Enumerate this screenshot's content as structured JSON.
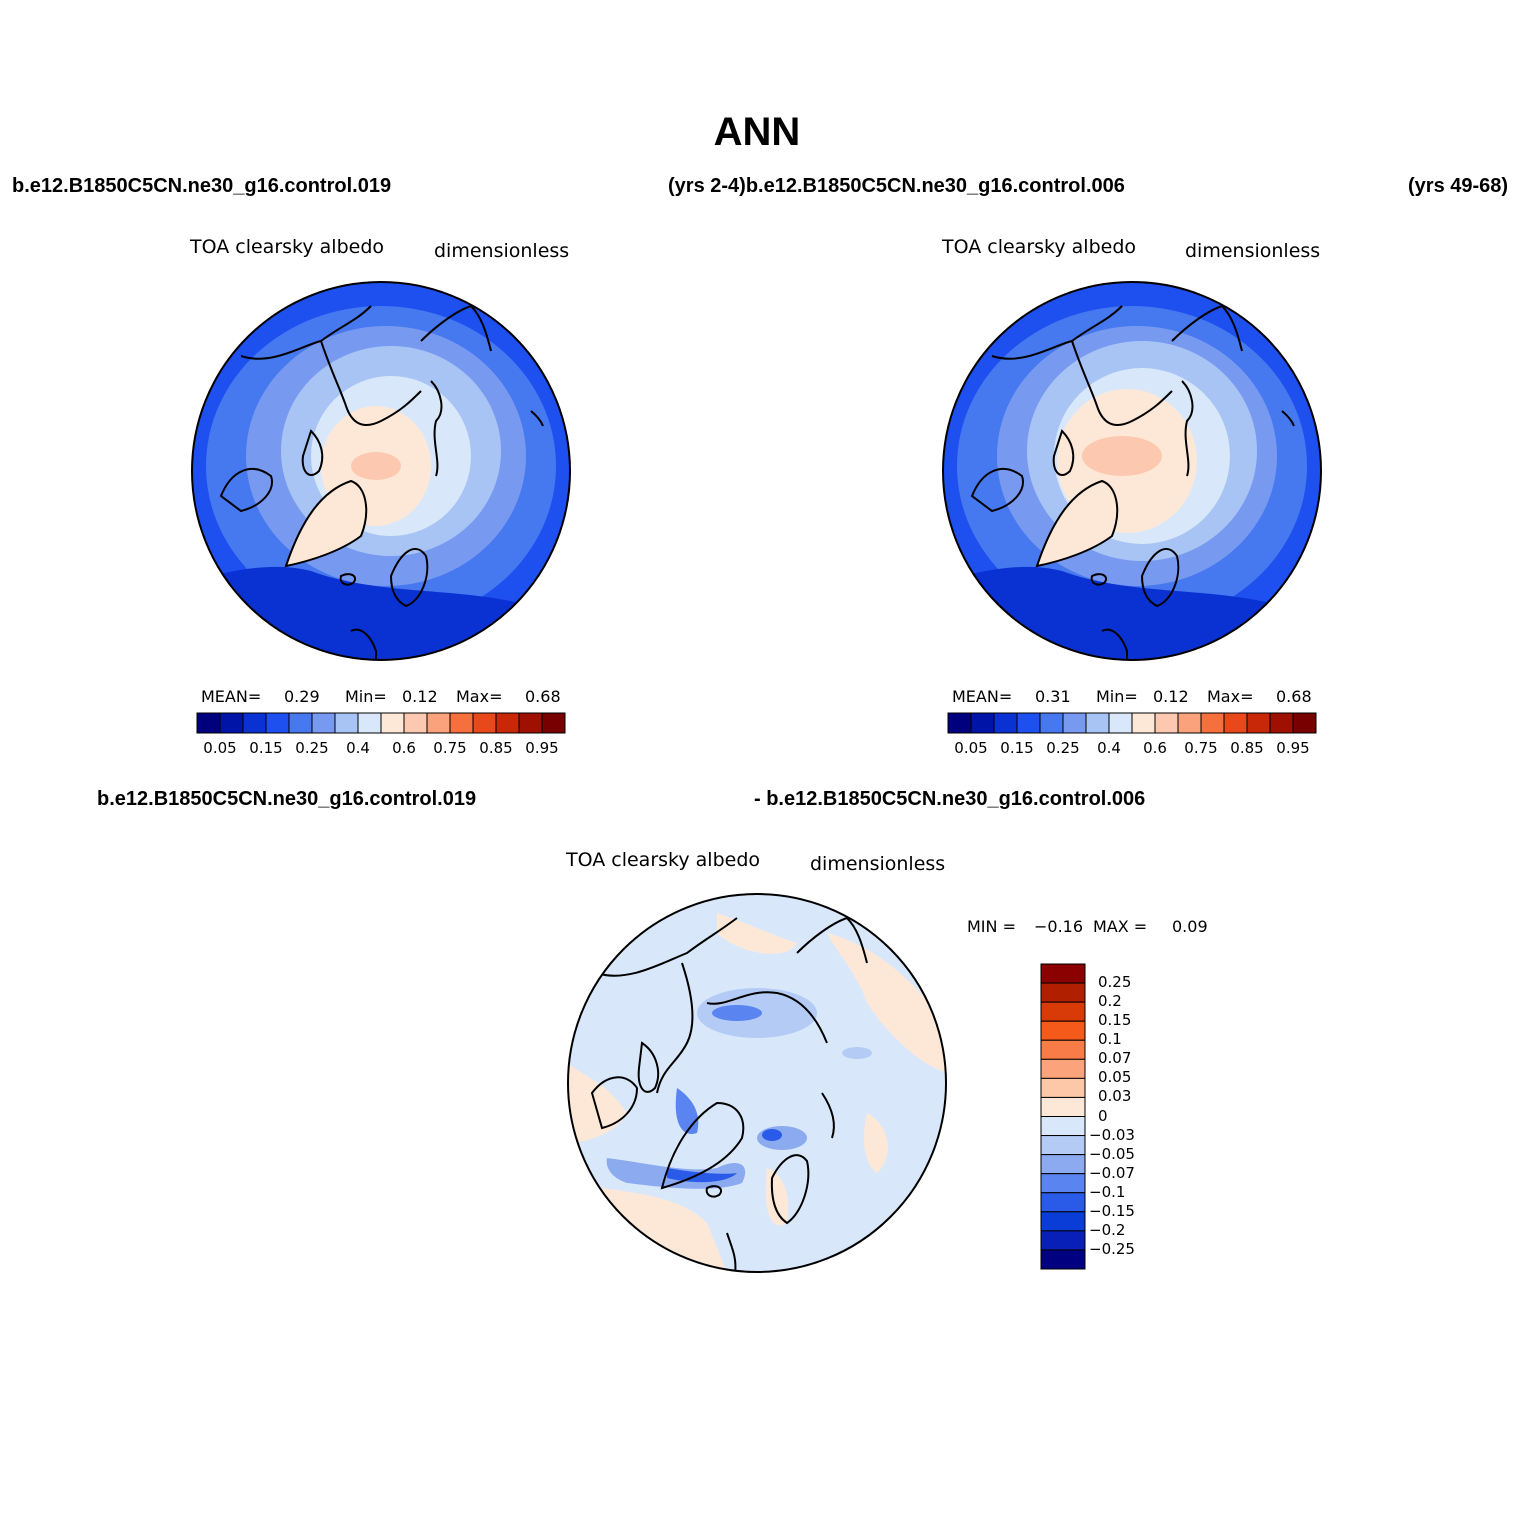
{
  "figure": {
    "title": "ANN",
    "case_line_1": {
      "left": "b.e12.B1850C5CN.ne30_g16.control.019",
      "middle": "(yrs 2-4)b.e12.B1850C5CN.ne30_g16.control.006",
      "right": "(yrs 49-68)"
    },
    "case_line_2": {
      "left": "b.e12.B1850C5CN.ne30_g16.control.019",
      "right": "- b.e12.B1850C5CN.ne30_g16.control.006"
    }
  },
  "panels": [
    {
      "variable": "TOA clearsky albedo",
      "units": "dimensionless",
      "stats": {
        "mean_label": "MEAN=",
        "mean": "0.29",
        "min_label": "Min=",
        "min": "0.12",
        "max_label": "Max=",
        "max": "0.68"
      }
    },
    {
      "variable": "TOA clearsky albedo",
      "units": "dimensionless",
      "stats": {
        "mean_label": "MEAN=",
        "mean": "0.31",
        "min_label": "Min=",
        "min": "0.12",
        "max_label": "Max=",
        "max": "0.68"
      }
    },
    {
      "variable": "TOA clearsky albedo",
      "units": "dimensionless",
      "stats": {
        "min_label": "MIN =",
        "min": "−0.16",
        "max_label": "MAX =",
        "max": "0.09"
      }
    }
  ],
  "abs_colorbar": {
    "colors": [
      "#00007f",
      "#0014a8",
      "#0a32d2",
      "#1e50f0",
      "#4678f0",
      "#7899f0",
      "#a8c4f5",
      "#d8e8fa",
      "#fde8d8",
      "#fcc8b0",
      "#f9a27c",
      "#f5703c",
      "#e8481a",
      "#c82808",
      "#a01000",
      "#780000"
    ],
    "tick_labels": [
      "0.05",
      "0.15",
      "0.25",
      "0.4",
      "0.6",
      "0.75",
      "0.85",
      "0.95"
    ]
  },
  "diff_colorbar": {
    "colors_top_to_bottom": [
      "#8b0000",
      "#b02000",
      "#d83a08",
      "#f55a1a",
      "#f87c48",
      "#fba47c",
      "#fdc8a8",
      "#fde8d8",
      "#d8e8fa",
      "#b4ccf5",
      "#8caaf0",
      "#5a84f0",
      "#2a5ae8",
      "#0a3cd8",
      "#0820b8",
      "#000080"
    ],
    "tick_labels": [
      "0.25",
      "0.2",
      "0.15",
      "0.1",
      "0.07",
      "0.05",
      "0.03",
      "0",
      "−0.03",
      "−0.05",
      "−0.07",
      "−0.1",
      "−0.15",
      "−0.2",
      "−0.25"
    ]
  }
}
